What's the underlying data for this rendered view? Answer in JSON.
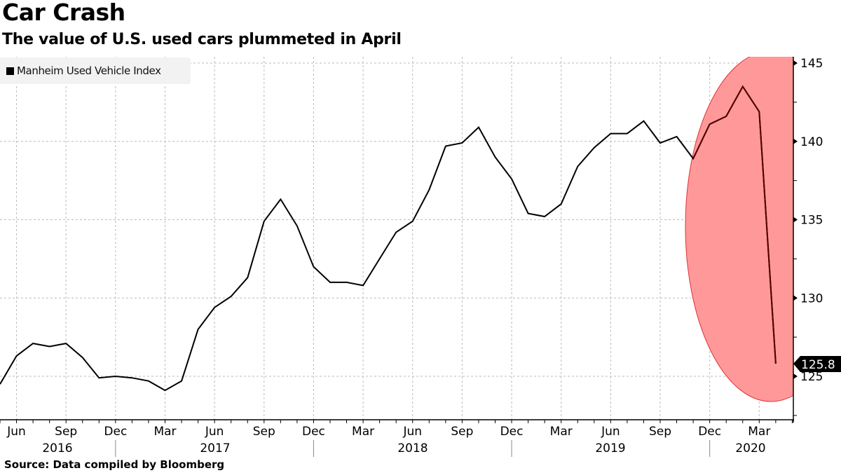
{
  "header": {
    "title": "Car Crash",
    "subtitle": "The value of U.S. used cars plummeted in April"
  },
  "footer": {
    "source": "Source: Data compiled by Bloomberg"
  },
  "legend": {
    "label": "Manheim Used Vehicle Index"
  },
  "annotation": {
    "last_value_label": "125.8",
    "highlight_color": "#ff9999",
    "highlight_stroke": "#e0323a"
  },
  "chart_data": {
    "type": "line",
    "title": "Car Crash",
    "subtitle": "The value of U.S. used cars plummeted in April",
    "xlabel": "",
    "ylabel": "",
    "ylim": [
      122,
      146
    ],
    "y_ticks": [
      125,
      130,
      135,
      140,
      145
    ],
    "y_axis_position": "right",
    "grid": true,
    "legend_position": "top-left",
    "x_tick_labels": [
      "Jun",
      "Sep",
      "Dec",
      "Mar",
      "Jun",
      "Sep",
      "Dec",
      "Mar",
      "Jun",
      "Sep",
      "Dec",
      "Mar",
      "Jun",
      "Sep",
      "Dec",
      "Mar"
    ],
    "x_year_labels": [
      "2016",
      "2017",
      "2018",
      "2019",
      "2020"
    ],
    "x": [
      "2016-05",
      "2016-06",
      "2016-07",
      "2016-08",
      "2016-09",
      "2016-10",
      "2016-11",
      "2016-12",
      "2017-01",
      "2017-02",
      "2017-03",
      "2017-04",
      "2017-05",
      "2017-06",
      "2017-07",
      "2017-08",
      "2017-09",
      "2017-10",
      "2017-11",
      "2017-12",
      "2018-01",
      "2018-02",
      "2018-03",
      "2018-04",
      "2018-05",
      "2018-06",
      "2018-07",
      "2018-08",
      "2018-09",
      "2018-10",
      "2018-11",
      "2018-12",
      "2019-01",
      "2019-02",
      "2019-03",
      "2019-04",
      "2019-05",
      "2019-06",
      "2019-07",
      "2019-08",
      "2019-09",
      "2019-10",
      "2019-11",
      "2019-12",
      "2020-01",
      "2020-02",
      "2020-03",
      "2020-04"
    ],
    "series": [
      {
        "name": "Manheim Used Vehicle Index",
        "color": "#000000",
        "values": [
          124.5,
          126.3,
          127.1,
          126.9,
          127.1,
          126.2,
          124.9,
          125.0,
          124.9,
          124.7,
          124.1,
          124.7,
          128.0,
          129.4,
          130.1,
          131.3,
          134.9,
          136.3,
          134.6,
          132.0,
          131.0,
          131.0,
          130.8,
          132.5,
          134.2,
          134.9,
          136.9,
          139.7,
          139.9,
          140.9,
          139.0,
          137.6,
          135.4,
          135.2,
          136.0,
          138.4,
          139.6,
          140.5,
          140.5,
          141.3,
          139.9,
          140.3,
          138.9,
          141.1,
          141.6,
          143.5,
          141.9,
          125.8
        ]
      }
    ],
    "annotations": [
      {
        "type": "last-value-label",
        "text": "125.8"
      },
      {
        "type": "highlight-ellipse",
        "region": "Dec 2019 - Apr 2020",
        "color": "#ff9999"
      }
    ]
  }
}
